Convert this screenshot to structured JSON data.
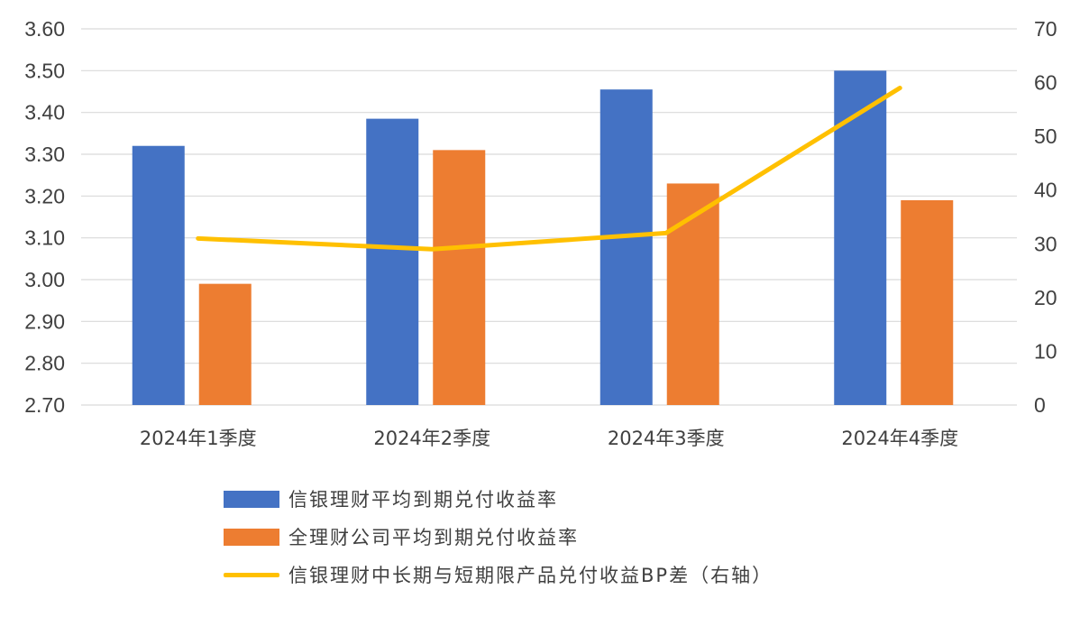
{
  "chart_data": {
    "type": "bar",
    "categories": [
      "2024年1季度",
      "2024年2季度",
      "2024年3季度",
      "2024年4季度"
    ],
    "series": [
      {
        "name": "信银理财平均到期兑付收益率",
        "kind": "bar",
        "axis": "left",
        "color": "#4472C4",
        "values": [
          3.32,
          3.385,
          3.455,
          3.5
        ]
      },
      {
        "name": "全理财公司平均到期兑付收益率",
        "kind": "bar",
        "axis": "left",
        "color": "#ED7D31",
        "values": [
          2.99,
          3.31,
          3.23,
          3.19
        ]
      },
      {
        "name": "信银理财中长期与短期限产品兑付收益BP差（右轴）",
        "kind": "line",
        "axis": "right",
        "color": "#FFC000",
        "values": [
          31,
          29,
          32,
          59
        ]
      }
    ],
    "ylim": [
      2.7,
      3.6
    ],
    "y_ticks": [
      "2.70",
      "2.80",
      "2.90",
      "3.00",
      "3.10",
      "3.20",
      "3.30",
      "3.40",
      "3.50",
      "3.60"
    ],
    "y2lim": [
      0,
      70
    ],
    "y2_ticks": [
      "0",
      "10",
      "20",
      "30",
      "40",
      "50",
      "60",
      "70"
    ],
    "grid": true,
    "legend_position": "bottom",
    "title": "",
    "xlabel": "",
    "ylabel": ""
  }
}
